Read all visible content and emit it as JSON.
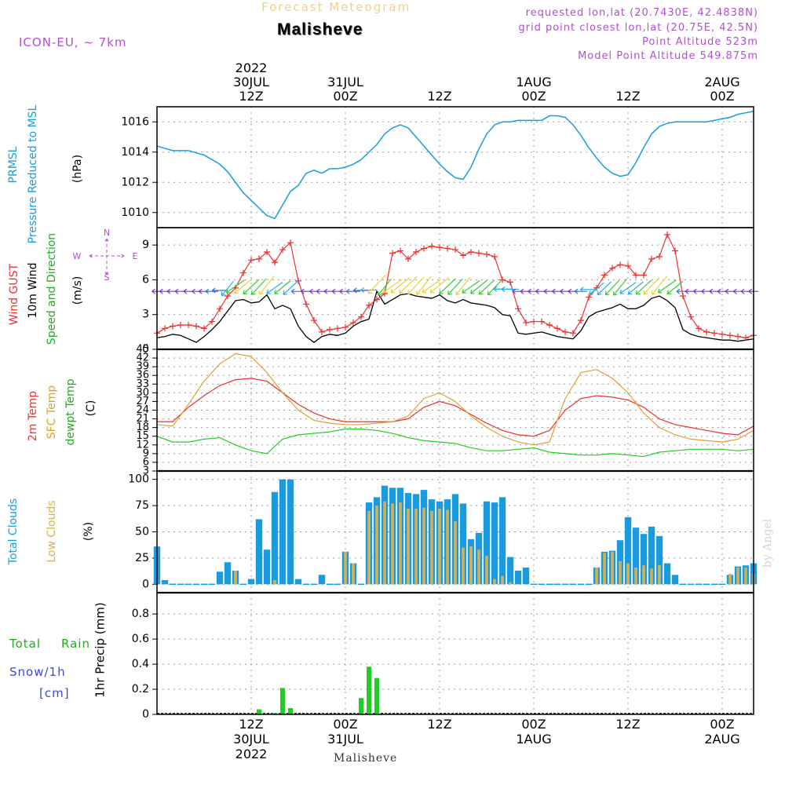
{
  "header": {
    "forecast_title": "Forecast Meteogram",
    "location": "Malisheve",
    "model": "ICON-EU,  ~ 7km",
    "requested": "requested lon,lat (20.7430E, 42.4838N)",
    "gridpoint": "grid point closest lon,lat (20.75E, 42.5N)",
    "point_altitude": "Point Altitude 523m",
    "model_altitude": "Model Point Altitude 549.875m",
    "credit": "by Angel",
    "footer_location": "Malisheve"
  },
  "colors": {
    "pressure": "#1a9be0",
    "gust": "#ee3030",
    "wind10": "#000000",
    "t2m": "#ee3030",
    "sfc": "#e0a030",
    "dewpt": "#22cc22",
    "total_clouds": "#1a9be0",
    "low_clouds": "#d8b050",
    "rain": "#22cc22",
    "snow": "#3a4adc",
    "purple": "#b050d0"
  },
  "time_axis": {
    "top_labels": [
      {
        "h": 12,
        "l1": "2022",
        "l2": "30JUL",
        "l3": "12Z"
      },
      {
        "h": 24,
        "l1": "",
        "l2": "31JUL",
        "l3": "00Z"
      },
      {
        "h": 36,
        "l1": "",
        "l2": "",
        "l3": "12Z"
      },
      {
        "h": 48,
        "l1": "",
        "l2": "1AUG",
        "l3": "00Z"
      },
      {
        "h": 60,
        "l1": "",
        "l2": "",
        "l3": "12Z"
      },
      {
        "h": 72,
        "l1": "",
        "l2": "2AUG",
        "l3": "00Z"
      }
    ],
    "bottom_labels": [
      {
        "h": 12,
        "l1": "12Z",
        "l2": "30JUL",
        "l3": "2022"
      },
      {
        "h": 24,
        "l1": "00Z",
        "l2": "31JUL",
        "l3": ""
      },
      {
        "h": 36,
        "l1": "12Z",
        "l2": "",
        "l3": ""
      },
      {
        "h": 48,
        "l1": "00Z",
        "l2": "1AUG",
        "l3": ""
      },
      {
        "h": 60,
        "l1": "12Z",
        "l2": "",
        "l3": ""
      },
      {
        "h": 72,
        "l1": "00Z",
        "l2": "2AUG",
        "l3": ""
      }
    ]
  },
  "chart_data": [
    {
      "type": "line",
      "panel": "pressure",
      "labels": [
        "PRMSL",
        "Pressure Reduced to MSL"
      ],
      "ylabel": "(hPa)",
      "ylim": [
        1009,
        1017
      ],
      "yticks": [
        1010,
        1012,
        1014,
        1016
      ],
      "x": [
        0,
        2,
        4,
        6,
        8,
        9,
        10,
        11,
        12,
        13,
        14,
        15,
        16,
        17,
        18,
        19,
        20,
        21,
        22,
        23,
        24,
        25,
        26,
        27,
        28,
        29,
        30,
        31,
        32,
        33,
        34,
        35,
        36,
        37,
        38,
        39,
        40,
        41,
        42,
        43,
        44,
        45,
        46,
        47,
        48,
        49,
        50,
        51,
        52,
        53,
        54,
        55,
        56,
        57,
        58,
        59,
        60,
        61,
        62,
        63,
        64,
        65,
        66,
        67,
        68,
        69,
        70,
        71,
        72,
        73,
        74,
        75,
        76
      ],
      "series": [
        {
          "name": "PRMSL",
          "values": [
            1014.4,
            1014.1,
            1014.1,
            1013.8,
            1013.2,
            1012.7,
            1012.0,
            1011.3,
            1010.8,
            1010.3,
            1009.8,
            1009.6,
            1010.5,
            1011.4,
            1011.8,
            1012.6,
            1012.8,
            1012.6,
            1012.9,
            1012.9,
            1013.0,
            1013.2,
            1013.5,
            1014.0,
            1014.5,
            1015.2,
            1015.6,
            1015.8,
            1015.6,
            1015.0,
            1014.4,
            1013.8,
            1013.2,
            1012.7,
            1012.3,
            1012.2,
            1013.0,
            1014.2,
            1015.2,
            1015.8,
            1016.0,
            1016.0,
            1016.1,
            1016.1,
            1016.1,
            1016.1,
            1016.4,
            1016.4,
            1016.3,
            1015.8,
            1015.1,
            1014.3,
            1013.6,
            1013.0,
            1012.6,
            1012.4,
            1012.5,
            1013.3,
            1014.3,
            1015.2,
            1015.7,
            1015.9,
            1016.0,
            1016.0,
            1016.0,
            1016.0,
            1016.0,
            1016.1,
            1016.2,
            1016.3,
            1016.5,
            1016.6,
            1016.7
          ]
        }
      ]
    },
    {
      "type": "line",
      "panel": "wind",
      "labels": [
        "Wind GUST",
        "10m Wind",
        "Speed and Direction"
      ],
      "ylabel": "(m/s)",
      "compass": {
        "n": "N",
        "w": "W",
        "e": "E",
        "s": "S"
      },
      "ylim": [
        0,
        10.5
      ],
      "yticks": [
        0,
        3,
        6,
        9
      ],
      "x": [
        0,
        1,
        2,
        3,
        4,
        5,
        6,
        7,
        8,
        9,
        10,
        11,
        12,
        13,
        14,
        15,
        16,
        17,
        18,
        19,
        20,
        21,
        22,
        23,
        24,
        25,
        26,
        27,
        28,
        29,
        30,
        31,
        32,
        33,
        34,
        35,
        36,
        37,
        38,
        39,
        40,
        41,
        42,
        43,
        44,
        45,
        46,
        47,
        48,
        49,
        50,
        51,
        52,
        53,
        54,
        55,
        56,
        57,
        58,
        59,
        60,
        61,
        62,
        63,
        64,
        65,
        66,
        67,
        68,
        69,
        70,
        71,
        72,
        73,
        74,
        75,
        76
      ],
      "series": [
        {
          "name": "Wind GUST",
          "values": [
            1.4,
            1.8,
            2.0,
            2.1,
            2.1,
            2.0,
            1.8,
            2.4,
            3.5,
            4.6,
            5.3,
            6.6,
            7.7,
            7.8,
            8.4,
            7.5,
            8.6,
            9.2,
            5.9,
            3.9,
            2.5,
            1.5,
            1.7,
            1.8,
            1.9,
            2.3,
            2.8,
            3.8,
            4.3,
            4.8,
            8.3,
            8.5,
            7.8,
            8.4,
            8.7,
            8.9,
            8.8,
            8.7,
            8.6,
            8.1,
            8.4,
            8.3,
            8.2,
            8.0,
            6.0,
            5.8,
            3.5,
            2.3,
            2.4,
            2.4,
            2.1,
            1.8,
            1.5,
            1.4,
            2.5,
            4.5,
            5.3,
            6.4,
            7.0,
            7.3,
            7.2,
            6.4,
            6.4,
            7.8,
            8.0,
            9.9,
            8.5,
            4.6,
            2.8,
            1.8,
            1.5,
            1.4,
            1.3,
            1.2,
            1.1,
            1.0,
            1.2
          ]
        },
        {
          "name": "10m Wind",
          "values": [
            1.0,
            1.1,
            1.3,
            1.2,
            0.9,
            0.6,
            1.1,
            1.7,
            2.4,
            3.3,
            4.2,
            4.3,
            4.0,
            4.1,
            4.7,
            3.5,
            3.8,
            3.5,
            2.0,
            1.1,
            0.6,
            1.1,
            1.3,
            1.2,
            1.4,
            2.0,
            2.4,
            2.6,
            5.0,
            3.9,
            4.3,
            4.7,
            4.8,
            4.6,
            4.5,
            4.4,
            4.7,
            4.2,
            4.0,
            4.3,
            4.0,
            3.9,
            3.8,
            3.6,
            3.0,
            2.9,
            1.4,
            1.3,
            1.4,
            1.5,
            1.3,
            1.1,
            1.0,
            0.9,
            1.6,
            2.8,
            3.2,
            3.4,
            3.6,
            3.9,
            3.5,
            3.5,
            3.8,
            4.4,
            4.6,
            4.2,
            3.6,
            1.7,
            1.3,
            1.1,
            1.0,
            0.9,
            0.8,
            0.8,
            0.7,
            0.8,
            0.9
          ]
        }
      ]
    },
    {
      "type": "line",
      "panel": "temperature",
      "labels": [
        "2m Temp",
        "SFC Temp",
        "dewpt Temp"
      ],
      "ylabel": "(C)",
      "ylim": [
        3,
        45
      ],
      "yticks": [
        3,
        6,
        9,
        12,
        15,
        18,
        21,
        24,
        27,
        30,
        33,
        36,
        39,
        42,
        45
      ],
      "x": [
        0,
        2,
        4,
        6,
        8,
        10,
        12,
        14,
        16,
        18,
        20,
        22,
        24,
        26,
        28,
        30,
        32,
        34,
        36,
        38,
        40,
        42,
        44,
        46,
        48,
        50,
        52,
        54,
        56,
        58,
        60,
        62,
        64,
        66,
        68,
        70,
        72,
        74,
        76
      ],
      "series": [
        {
          "name": "2m Temp",
          "values": [
            20.0,
            20.0,
            25.0,
            29.0,
            32.5,
            34.5,
            35.0,
            34.0,
            30.0,
            26.0,
            23.0,
            21.0,
            20.0,
            20.0,
            20.0,
            20.0,
            21.0,
            25.0,
            27.0,
            25.5,
            22.5,
            19.5,
            17.0,
            15.5,
            15.0,
            17.0,
            24.0,
            28.0,
            29.0,
            28.5,
            27.5,
            25.0,
            21.0,
            19.0,
            18.0,
            17.0,
            16.0,
            15.5,
            18.5
          ]
        },
        {
          "name": "SFC Temp",
          "values": [
            19.0,
            18.5,
            26.0,
            34.0,
            40.0,
            43.5,
            42.5,
            37.0,
            30.0,
            24.0,
            20.5,
            19.5,
            19.0,
            19.0,
            19.5,
            20.0,
            22.0,
            28.0,
            30.0,
            27.0,
            22.0,
            18.0,
            15.0,
            13.0,
            12.0,
            13.0,
            28.0,
            37.0,
            38.0,
            35.0,
            30.0,
            23.0,
            18.0,
            15.5,
            14.0,
            13.5,
            13.0,
            14.0,
            17.0
          ]
        },
        {
          "name": "dewpt Temp",
          "values": [
            15.0,
            13.0,
            13.0,
            14.0,
            14.5,
            12.0,
            10.0,
            9.0,
            14.0,
            15.5,
            16.0,
            16.5,
            17.5,
            17.5,
            17.0,
            16.0,
            14.5,
            13.5,
            13.0,
            12.5,
            11.0,
            10.0,
            10.0,
            10.5,
            11.0,
            9.5,
            9.0,
            8.5,
            8.5,
            9.0,
            8.5,
            8.0,
            9.5,
            10.0,
            10.5,
            10.5,
            10.5,
            10.0,
            10.5
          ]
        }
      ]
    },
    {
      "type": "bar",
      "panel": "clouds",
      "labels": [
        "Total Clouds",
        "Low Clouds"
      ],
      "ylabel": "(%)",
      "ylim": [
        -8,
        108
      ],
      "yticks": [
        0,
        25,
        50,
        75,
        100
      ],
      "x": [
        0,
        1,
        2,
        3,
        4,
        5,
        6,
        7,
        8,
        9,
        10,
        11,
        12,
        13,
        14,
        15,
        16,
        17,
        18,
        19,
        20,
        21,
        22,
        23,
        24,
        25,
        26,
        27,
        28,
        29,
        30,
        31,
        32,
        33,
        34,
        35,
        36,
        37,
        38,
        39,
        40,
        41,
        42,
        43,
        44,
        45,
        46,
        47,
        48,
        49,
        50,
        51,
        52,
        53,
        54,
        55,
        56,
        57,
        58,
        59,
        60,
        61,
        62,
        63,
        64,
        65,
        66,
        67,
        68,
        69,
        70,
        71,
        72,
        73,
        74,
        75,
        76
      ],
      "series": [
        {
          "name": "Total Clouds",
          "values": [
            36,
            4,
            0,
            0,
            0,
            0,
            0,
            0,
            12,
            21,
            13,
            0,
            5,
            62,
            33,
            88,
            100,
            100,
            5,
            0,
            0,
            9,
            0,
            0,
            31,
            20,
            0,
            78,
            83,
            94,
            92,
            92,
            87,
            86,
            90,
            81,
            79,
            81,
            86,
            77,
            43,
            49,
            79,
            78,
            83,
            26,
            13,
            16,
            0,
            0,
            0,
            0,
            0,
            0,
            0,
            0,
            16,
            31,
            32,
            42,
            64,
            54,
            48,
            55,
            46,
            20,
            9,
            0,
            0,
            0,
            0,
            0,
            0,
            9,
            17,
            18,
            20
          ]
        },
        {
          "name": "Low Clouds",
          "values": [
            0,
            0,
            0,
            0,
            0,
            0,
            0,
            0,
            0,
            0,
            13,
            0,
            0,
            0,
            0,
            4,
            0,
            0,
            0,
            0,
            0,
            0,
            0,
            0,
            31,
            20,
            0,
            70,
            75,
            79,
            77,
            78,
            72,
            72,
            73,
            70,
            72,
            71,
            60,
            35,
            36,
            33,
            27,
            5,
            8,
            2,
            0,
            0,
            0,
            0,
            0,
            0,
            0,
            0,
            0,
            0,
            16,
            30,
            31,
            22,
            20,
            16,
            18,
            15,
            18,
            0,
            0,
            0,
            0,
            0,
            0,
            0,
            0,
            10,
            16,
            16,
            10
          ]
        }
      ]
    },
    {
      "type": "bar",
      "panel": "precip",
      "labels": [
        "Total",
        "Rain",
        "Snow/1h",
        "[cm]"
      ],
      "ylabel": "1hr Precip (mm)",
      "ylim": [
        0,
        0.97
      ],
      "yticks": [
        0,
        0.2,
        0.4,
        0.6,
        0.8
      ],
      "ytick_labels": [
        "0",
        "0.2",
        "0.4",
        "0.6",
        "0.8"
      ],
      "x": [
        13,
        15,
        16,
        17,
        26,
        27,
        28
      ],
      "series": [
        {
          "name": "Rain",
          "values": [
            0.04,
            0.01,
            0.21,
            0.05,
            0.13,
            0.38,
            0.29
          ]
        }
      ]
    }
  ]
}
